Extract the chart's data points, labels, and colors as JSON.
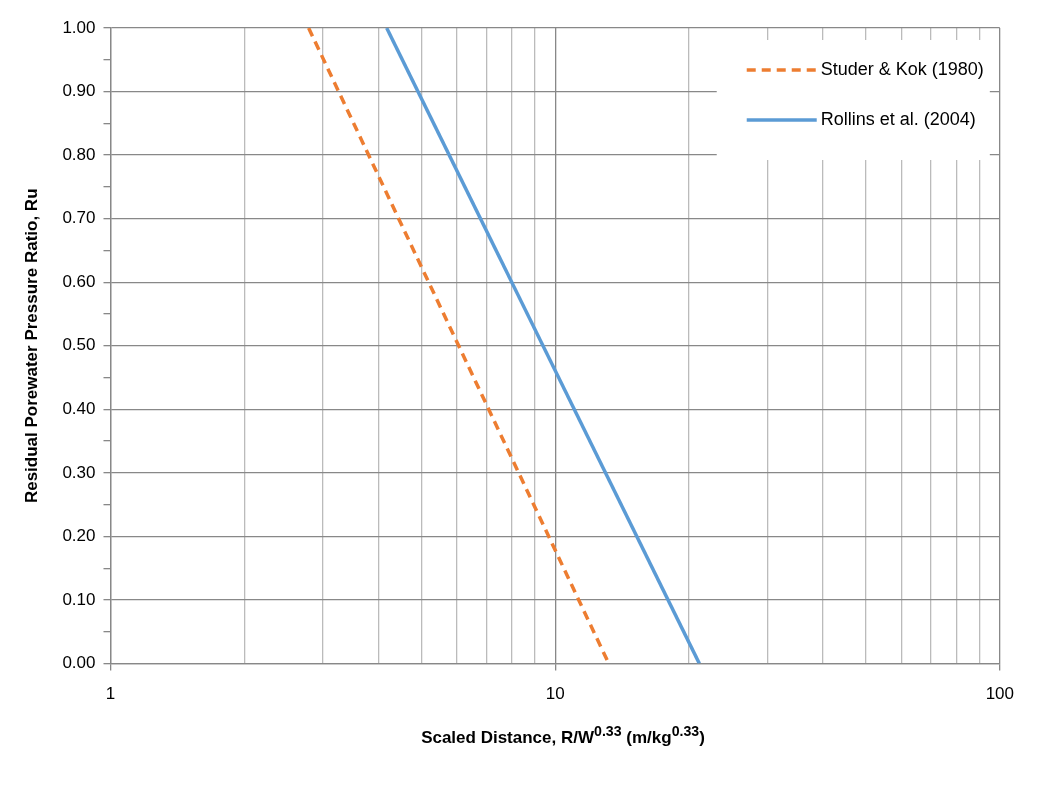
{
  "chart_data": {
    "type": "line",
    "xlabel": "Scaled Distance, R/W$^{0.33}$ (m/kg$^{0.33}$)",
    "ylabel": "Residual Porewater Pressure Ratio, Ru",
    "log": "x",
    "xlim": [
      1,
      100
    ],
    "xticks": [
      1,
      {
        "value": 2,
        "label": null
      },
      {
        "value": 3,
        "label": null
      },
      {
        "value": 4,
        "label": null
      },
      {
        "value": 5,
        "label": null
      },
      {
        "value": 6,
        "label": null
      },
      {
        "value": 7,
        "label": null
      },
      {
        "value": 8,
        "label": null
      },
      {
        "value": 9,
        "label": null
      },
      10,
      {
        "value": 20,
        "label": null
      },
      {
        "value": 30,
        "label": null
      },
      {
        "value": 40,
        "label": null
      },
      {
        "value": 50,
        "label": null
      },
      {
        "value": 60,
        "label": null
      },
      {
        "value": 70,
        "label": null
      },
      {
        "value": 80,
        "label": null
      },
      {
        "value": 90,
        "label": null
      },
      100
    ],
    "ylim": [
      0,
      1
    ],
    "yticks": [
      {
        "value": 0,
        "label": "0.00"
      },
      {
        "value": 0.05,
        "label": null
      },
      {
        "value": 0.1,
        "label": "0.10"
      },
      {
        "value": 0.15,
        "label": null
      },
      {
        "value": 0.2,
        "label": "0.20"
      },
      {
        "value": 0.25,
        "label": null
      },
      {
        "value": 0.3,
        "label": "0.30"
      },
      {
        "value": 0.35,
        "label": null
      },
      {
        "value": 0.4,
        "label": "0.40"
      },
      {
        "value": 0.45,
        "label": null
      },
      {
        "value": 0.5,
        "label": "0.50"
      },
      {
        "value": 0.55,
        "label": null
      },
      {
        "value": 0.6,
        "label": "0.60"
      },
      {
        "value": 0.65,
        "label": null
      },
      {
        "value": 0.7,
        "label": "0.70"
      },
      {
        "value": 0.75,
        "label": null
      },
      {
        "value": 0.8,
        "label": "0.80"
      },
      {
        "value": 0.85,
        "label": null
      },
      {
        "value": 0.9,
        "label": "0.90"
      },
      {
        "value": 0.95,
        "label": null
      },
      {
        "value": 1,
        "label": "1.00"
      }
    ],
    "grid": true,
    "legend": "top right",
    "marker": "none",
    "series": [
      {
        "name": "Studer & Kok (1980)",
        "color": "#ed7d31",
        "line_style": "dashed",
        "x": [
          2.79,
          13.2
        ],
        "values": [
          1,
          0
        ]
      },
      {
        "name": "Rollins et al. (2004)",
        "color": "#5b9bd5",
        "line_style": "solid",
        "x": [
          4.18,
          21.1
        ],
        "values": [
          1,
          0
        ]
      }
    ]
  }
}
